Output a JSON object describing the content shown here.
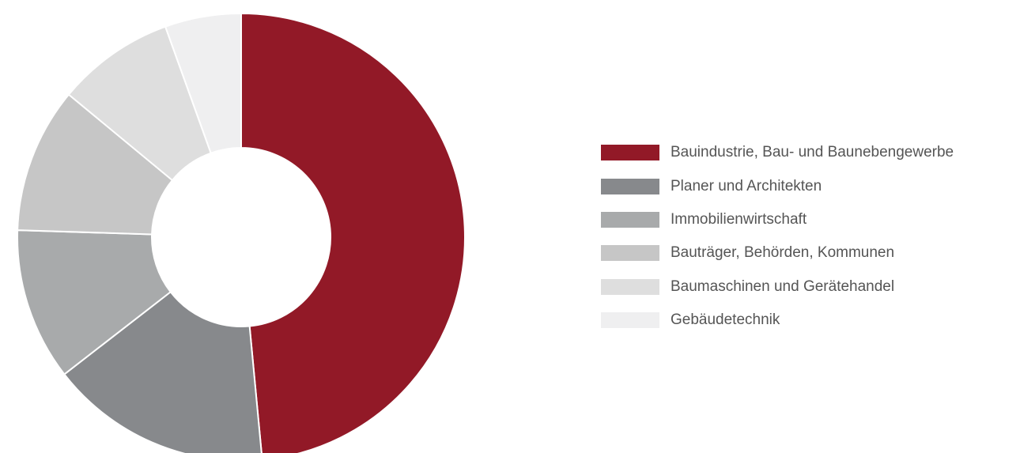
{
  "chart_data": {
    "type": "pie",
    "donut": true,
    "legend_position": "right",
    "slices": [
      {
        "label": "Bauindustrie, Bau- und Baunebengewerbe",
        "value": 48.5,
        "color": "#921927"
      },
      {
        "label": "Planer und Architekten",
        "value": 16.0,
        "color": "#87898c"
      },
      {
        "label": "Immobilienwirtschaft",
        "value": 11.0,
        "color": "#a8aaab"
      },
      {
        "label": "Bauträger, Behörden, Kommunen",
        "value": 10.5,
        "color": "#c6c6c6"
      },
      {
        "label": "Baumaschinen und Gerätehandel",
        "value": 8.5,
        "color": "#dedede"
      },
      {
        "label": "Gebäudetechnik",
        "value": 5.5,
        "color": "#efeff0"
      }
    ]
  }
}
